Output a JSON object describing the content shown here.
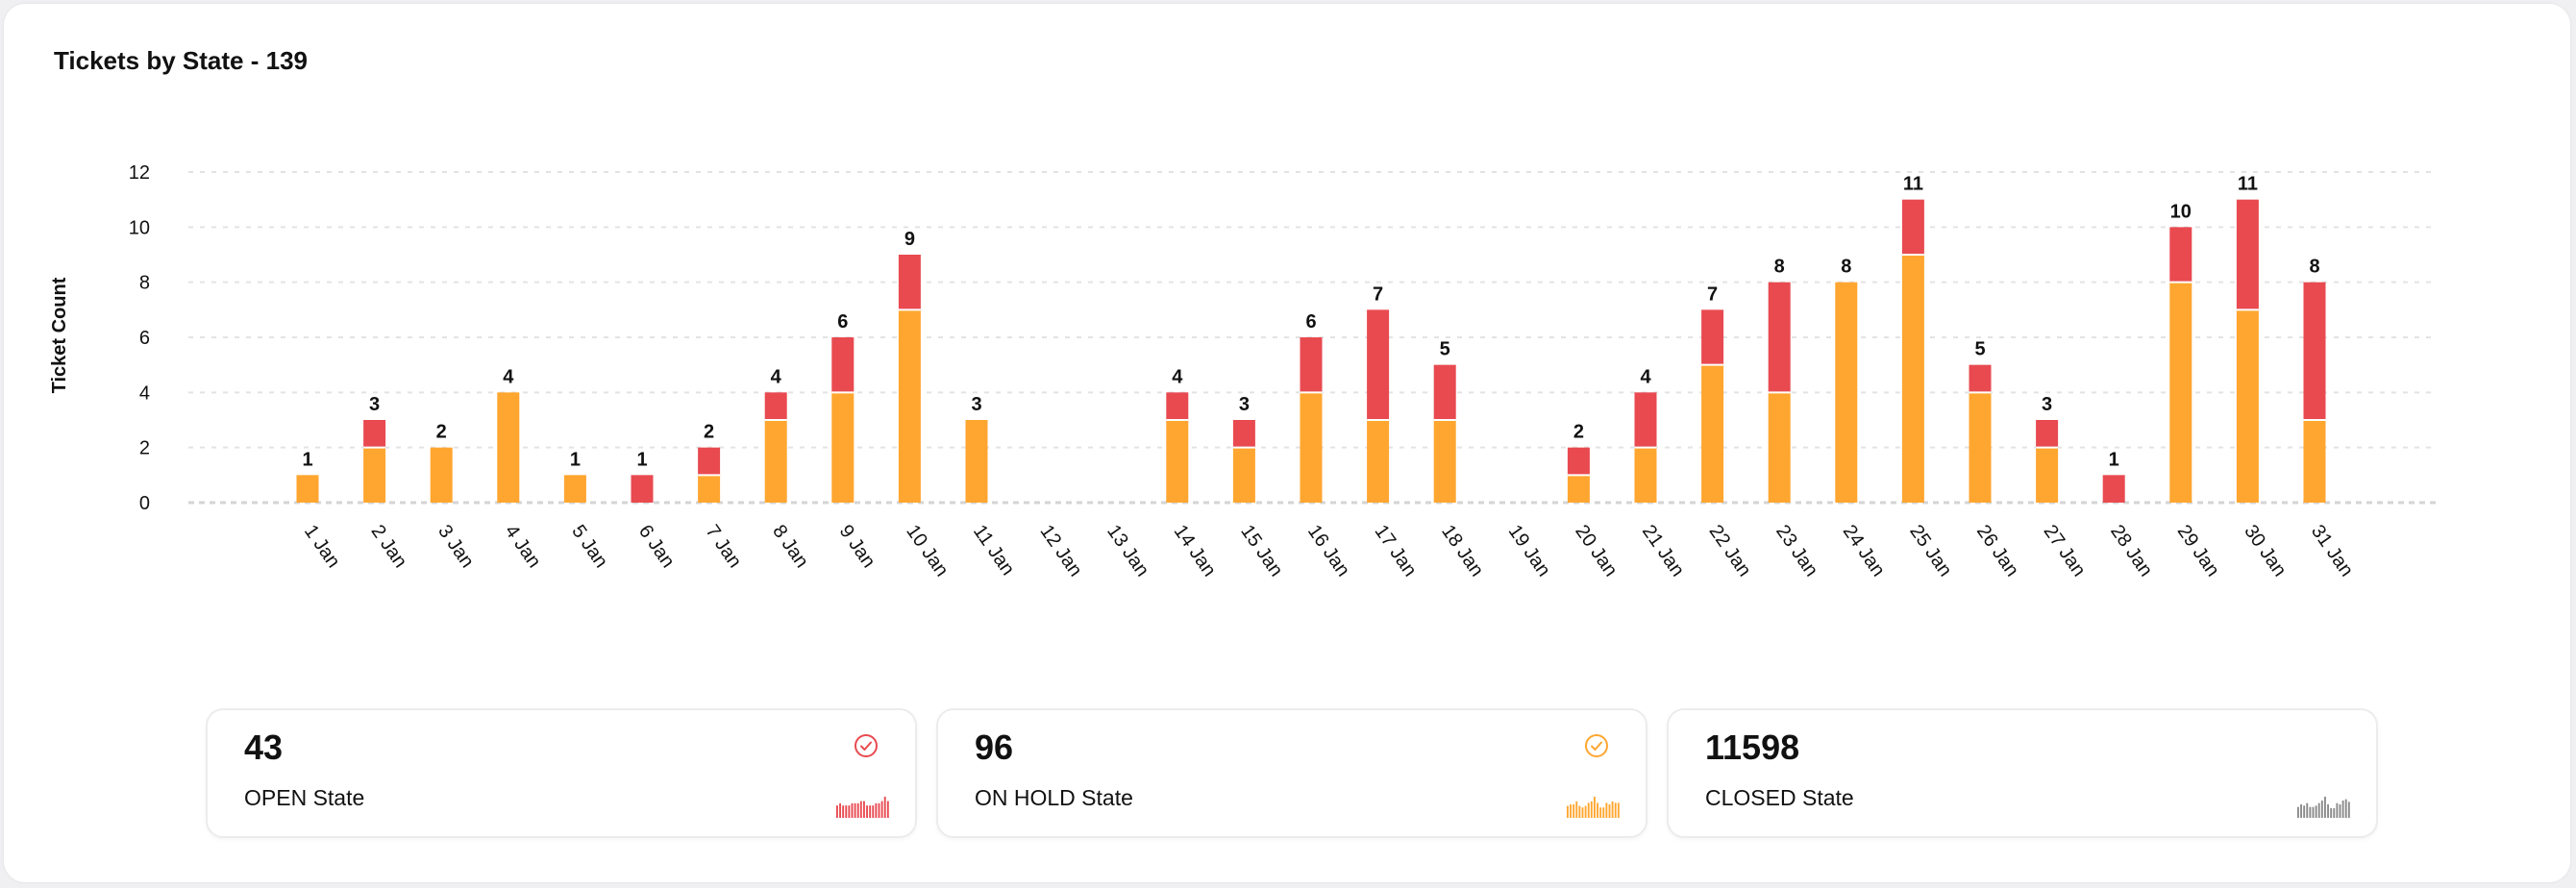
{
  "colors": {
    "on_hold": "#FFA630",
    "open": "#E84A50",
    "closed": "#8a8a8a",
    "grid": "#e3e3e3",
    "text": "#111111"
  },
  "chart_data": {
    "type": "bar",
    "stacked": true,
    "title": "Tickets by State - 139",
    "xlabel": "",
    "ylabel": "Ticket Count",
    "ylim": [
      0,
      12
    ],
    "yticks": [
      0,
      2,
      4,
      6,
      8,
      10,
      12
    ],
    "grid": true,
    "categories": [
      "1 Jan",
      "2 Jan",
      "3 Jan",
      "4 Jan",
      "5 Jan",
      "6 Jan",
      "7 Jan",
      "8 Jan",
      "9 Jan",
      "10 Jan",
      "11 Jan",
      "12 Jan",
      "13 Jan",
      "14 Jan",
      "15 Jan",
      "16 Jan",
      "17 Jan",
      "18 Jan",
      "19 Jan",
      "20 Jan",
      "21 Jan",
      "22 Jan",
      "23 Jan",
      "24 Jan",
      "25 Jan",
      "26 Jan",
      "27 Jan",
      "28 Jan",
      "29 Jan",
      "30 Jan",
      "31 Jan"
    ],
    "series": [
      {
        "name": "ON HOLD",
        "color": "#FFA630",
        "values": [
          1,
          2,
          2,
          4,
          1,
          0,
          1,
          3,
          4,
          7,
          3,
          0,
          0,
          3,
          2,
          4,
          3,
          3,
          0,
          1,
          2,
          5,
          4,
          8,
          9,
          4,
          2,
          0,
          8,
          7,
          3
        ]
      },
      {
        "name": "OPEN",
        "color": "#E84A50",
        "values": [
          0,
          1,
          0,
          0,
          0,
          1,
          1,
          1,
          2,
          2,
          0,
          0,
          0,
          1,
          1,
          2,
          4,
          2,
          0,
          1,
          2,
          2,
          4,
          0,
          2,
          1,
          1,
          1,
          2,
          4,
          5
        ]
      }
    ],
    "totals": [
      1,
      3,
      2,
      4,
      1,
      1,
      2,
      4,
      6,
      9,
      3,
      null,
      null,
      4,
      3,
      6,
      7,
      5,
      null,
      2,
      4,
      7,
      8,
      8,
      11,
      5,
      3,
      1,
      10,
      11,
      8
    ]
  },
  "stats": [
    {
      "value": "43",
      "label": "OPEN State",
      "icon": "check-circle-icon",
      "color": "#E84A50"
    },
    {
      "value": "96",
      "label": "ON HOLD State",
      "icon": "check-circle-icon",
      "color": "#FFA630"
    },
    {
      "value": "11598",
      "label": "CLOSED State",
      "icon": "",
      "color": "#8a8a8a"
    }
  ]
}
